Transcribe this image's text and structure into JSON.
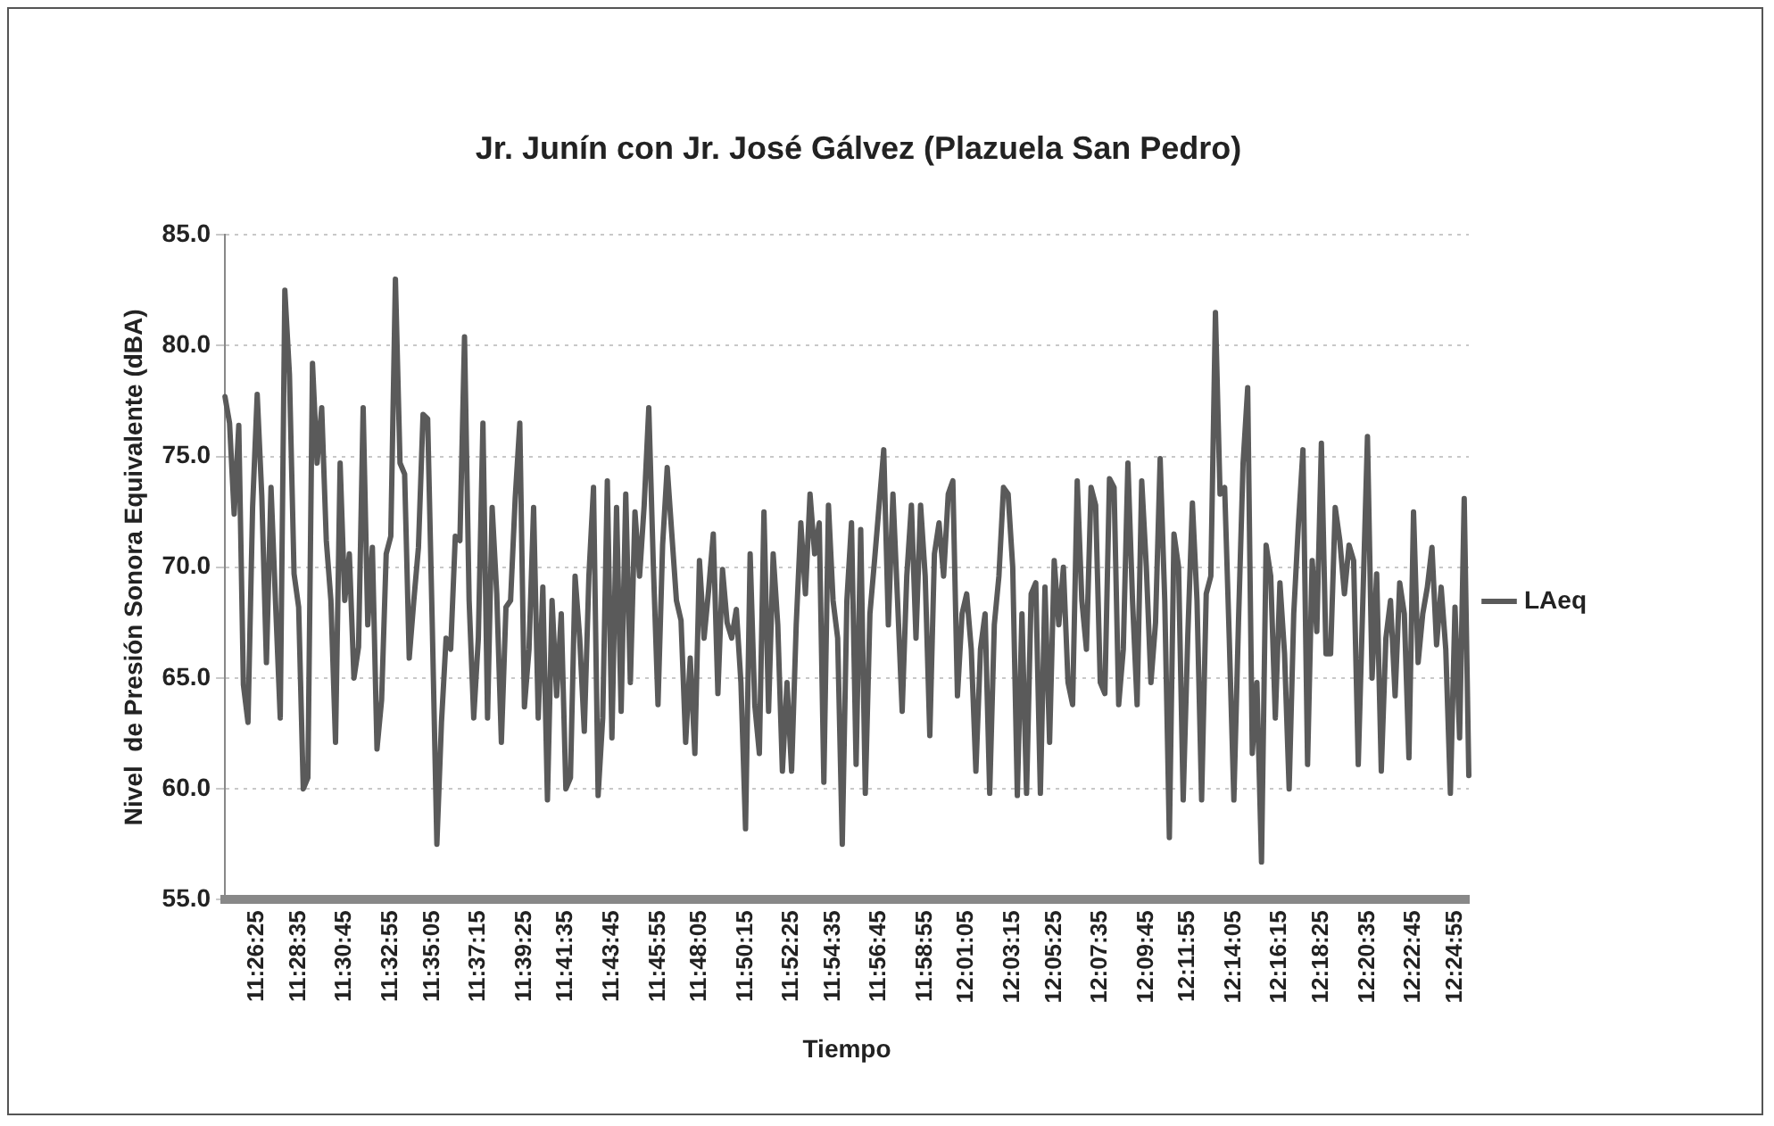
{
  "chart_data": {
    "type": "line",
    "title": "Jr. Junín con Jr. José Gálvez (Plazuela San Pedro)",
    "xlabel": "Tiempo",
    "ylabel": "Nivel  de Presión Sonora Equivalente (dBA)",
    "categories": [
      null,
      null,
      null,
      null,
      null,
      null,
      null,
      "11:26:25",
      null,
      null,
      null,
      null,
      null,
      null,
      null,
      null,
      "11:28:35",
      null,
      null,
      null,
      null,
      null,
      null,
      null,
      null,
      null,
      "11:30:45",
      null,
      null,
      null,
      null,
      null,
      null,
      null,
      null,
      null,
      "11:32:55",
      null,
      null,
      null,
      null,
      null,
      null,
      null,
      null,
      "11:35:05",
      null,
      null,
      null,
      null,
      null,
      null,
      null,
      null,
      null,
      "11:37:15",
      null,
      null,
      null,
      null,
      null,
      null,
      null,
      null,
      null,
      "11:39:25",
      null,
      null,
      null,
      null,
      null,
      null,
      null,
      null,
      "11:41:35",
      null,
      null,
      null,
      null,
      null,
      null,
      null,
      null,
      null,
      "11:43:45",
      null,
      null,
      null,
      null,
      null,
      null,
      null,
      null,
      null,
      "11:45:55",
      null,
      null,
      null,
      null,
      null,
      null,
      null,
      null,
      "11:48:05",
      null,
      null,
      null,
      null,
      null,
      null,
      null,
      null,
      null,
      "11:50:15",
      null,
      null,
      null,
      null,
      null,
      null,
      null,
      null,
      null,
      "11:52:25",
      null,
      null,
      null,
      null,
      null,
      null,
      null,
      null,
      "11:54:35",
      null,
      null,
      null,
      null,
      null,
      null,
      null,
      null,
      null,
      "11:56:45",
      null,
      null,
      null,
      null,
      null,
      null,
      null,
      null,
      null,
      "11:58:55",
      null,
      null,
      null,
      null,
      null,
      null,
      null,
      null,
      "12:01:05",
      null,
      null,
      null,
      null,
      null,
      null,
      null,
      null,
      null,
      "12:03:15",
      null,
      null,
      null,
      null,
      null,
      null,
      null,
      null,
      "12:05:25",
      null,
      null,
      null,
      null,
      null,
      null,
      null,
      null,
      null,
      "12:07:35",
      null,
      null,
      null,
      null,
      null,
      null,
      null,
      null,
      null,
      "12:09:45",
      null,
      null,
      null,
      null,
      null,
      null,
      null,
      null,
      "12:11:55",
      null,
      null,
      null,
      null,
      null,
      null,
      null,
      null,
      null,
      "12:14:05",
      null,
      null,
      null,
      null,
      null,
      null,
      null,
      null,
      null,
      "12:16:15",
      null,
      null,
      null,
      null,
      null,
      null,
      null,
      null,
      "12:18:25",
      null,
      null,
      null,
      null,
      null,
      null,
      null,
      null,
      null,
      "12:20:35",
      null,
      null,
      null,
      null,
      null,
      null,
      null,
      null,
      null,
      "12:22:45",
      null,
      null,
      null,
      null,
      null,
      null,
      null,
      null,
      "12:24:55",
      null,
      null,
      null
    ],
    "series": [
      {
        "name": "LAeq",
        "color": "#5a5a5a",
        "values": [
          77.7,
          76.5,
          72.4,
          76.4,
          64.7,
          63.0,
          72.7,
          77.8,
          73.2,
          65.7,
          73.6,
          68.3,
          63.2,
          82.5,
          78.7,
          69.7,
          68.2,
          60.0,
          60.5,
          79.2,
          74.7,
          77.2,
          71.2,
          68.5,
          62.1,
          74.7,
          68.5,
          70.6,
          65.0,
          66.4,
          77.2,
          67.4,
          70.9,
          61.8,
          64.0,
          70.6,
          71.4,
          83.0,
          74.7,
          74.2,
          65.9,
          68.5,
          70.9,
          76.9,
          76.7,
          67.4,
          57.5,
          63.0,
          66.8,
          66.3,
          71.4,
          71.2,
          80.4,
          68.5,
          63.2,
          66.8,
          76.5,
          63.2,
          72.7,
          68.8,
          62.1,
          68.2,
          68.5,
          73.1,
          76.5,
          63.7,
          66.3,
          72.7,
          63.2,
          69.1,
          59.5,
          68.5,
          64.2,
          67.9,
          60.0,
          60.5,
          69.6,
          66.8,
          62.6,
          69.6,
          73.6,
          59.7,
          63.2,
          73.9,
          62.3,
          72.7,
          63.5,
          73.3,
          64.8,
          72.5,
          69.6,
          72.8,
          77.2,
          70.0,
          63.8,
          71.0,
          74.5,
          71.5,
          68.5,
          67.6,
          62.1,
          65.9,
          61.6,
          70.3,
          66.8,
          69.0,
          71.5,
          64.3,
          69.9,
          67.5,
          66.8,
          68.1,
          64.8,
          58.2,
          70.6,
          63.8,
          61.6,
          72.5,
          63.5,
          70.6,
          67.4,
          60.8,
          64.8,
          60.8,
          67.4,
          72.0,
          68.8,
          73.3,
          70.6,
          72.0,
          60.3,
          72.8,
          68.5,
          66.8,
          57.5,
          68.5,
          72.0,
          61.1,
          71.7,
          59.8,
          67.9,
          70.3,
          72.8,
          75.3,
          67.4,
          73.3,
          68.5,
          63.5,
          69.6,
          72.8,
          66.8,
          72.8,
          69.6,
          62.4,
          70.6,
          72.0,
          69.6,
          73.3,
          73.9,
          64.2,
          67.9,
          68.8,
          66.3,
          60.8,
          66.3,
          67.9,
          59.8,
          67.4,
          69.6,
          73.6,
          73.3,
          70.0,
          59.7,
          67.9,
          59.8,
          68.8,
          69.3,
          59.8,
          69.1,
          62.1,
          70.3,
          67.4,
          70.0,
          64.8,
          63.8,
          73.9,
          68.5,
          66.3,
          73.6,
          72.8,
          64.8,
          64.3,
          74.0,
          73.6,
          63.8,
          66.3,
          74.7,
          68.5,
          63.8,
          73.9,
          70.0,
          64.8,
          67.5,
          74.9,
          68.5,
          57.8,
          71.5,
          70.0,
          59.5,
          66.9,
          72.9,
          68.5,
          59.5,
          68.8,
          69.6,
          81.5,
          73.3,
          73.6,
          66.8,
          59.5,
          67.5,
          74.7,
          78.1,
          61.6,
          64.8,
          56.7,
          71.0,
          69.6,
          63.2,
          69.3,
          66.1,
          60.0,
          67.9,
          71.9,
          75.3,
          61.1,
          70.3,
          67.1,
          75.6,
          66.1,
          66.1,
          72.7,
          71.2,
          68.8,
          71.0,
          70.3,
          61.1,
          68.5,
          75.9,
          65.0,
          69.7,
          60.8,
          66.8,
          68.5,
          64.2,
          69.3,
          67.9,
          61.4,
          72.5,
          65.7,
          67.9,
          69.1,
          70.9,
          66.5,
          69.1,
          66.3,
          59.8,
          68.2,
          62.3,
          73.1,
          60.6
        ]
      }
    ],
    "ylim": [
      55,
      85
    ],
    "yticks": [
      {
        "value": 55,
        "label": "55.0"
      },
      {
        "value": 60,
        "label": "60.0"
      },
      {
        "value": 65,
        "label": "65.0"
      },
      {
        "value": 70,
        "label": "70.0"
      },
      {
        "value": 75,
        "label": "75.0"
      },
      {
        "value": 80,
        "label": "80.0"
      },
      {
        "value": 85,
        "label": "85.0"
      }
    ],
    "grid": "y",
    "legend": "right",
    "marker": "none",
    "line_style": "solid"
  }
}
